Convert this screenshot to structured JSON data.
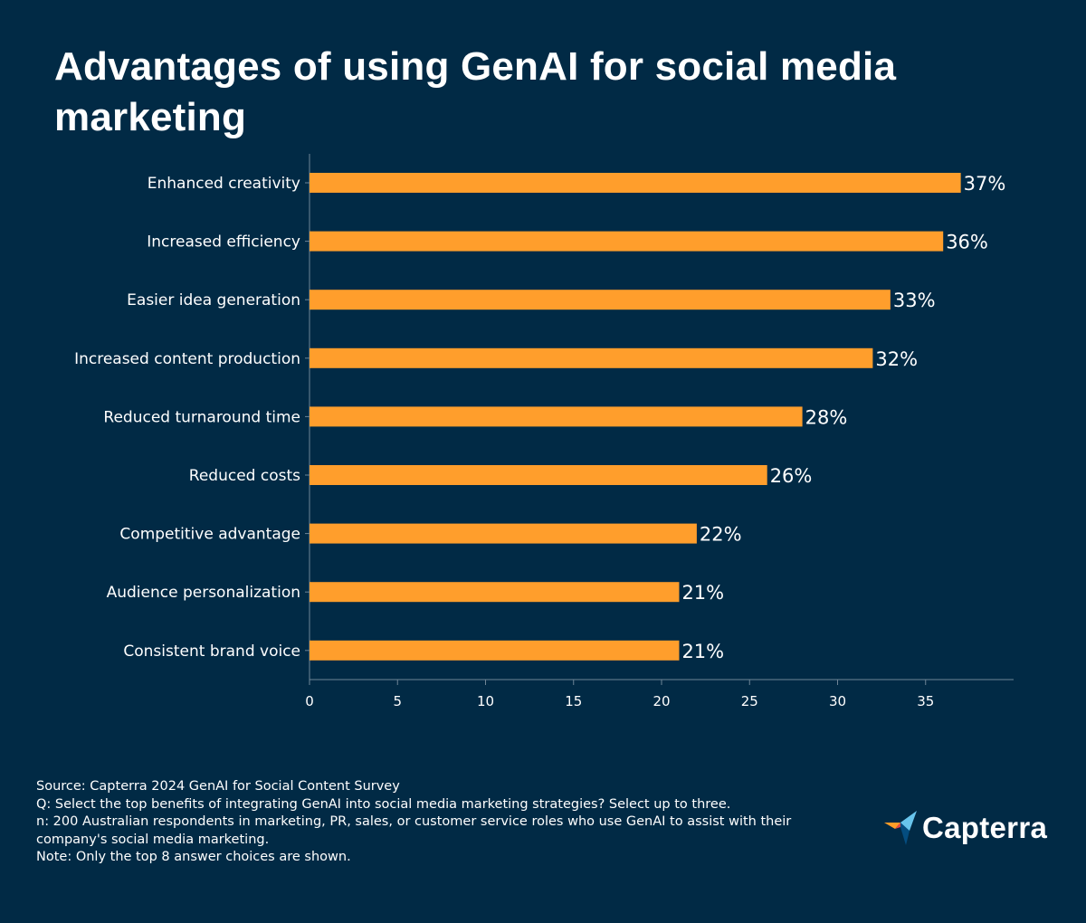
{
  "title": "Advantages of using GenAI for social media marketing",
  "chart_data": {
    "type": "bar",
    "orientation": "horizontal",
    "categories": [
      "Enhanced creativity",
      "Increased efficiency",
      "Easier idea generation",
      "Increased content production",
      "Reduced turnaround time",
      "Reduced costs",
      "Competitive advantage",
      "Audience personalization",
      "Consistent brand voice"
    ],
    "values": [
      37,
      36,
      33,
      32,
      28,
      26,
      22,
      21,
      21
    ],
    "value_labels": [
      "37%",
      "36%",
      "33%",
      "32%",
      "28%",
      "26%",
      "22%",
      "21%",
      "21%"
    ],
    "title": "Advantages of using GenAI for social media marketing",
    "xlabel": "",
    "ylabel": "",
    "xlim": [
      0,
      40
    ],
    "xticks": [
      0,
      5,
      10,
      15,
      20,
      25,
      30,
      35
    ],
    "grid": false,
    "bar_color": "#ff9e2c"
  },
  "notes": {
    "source": "Source: Capterra 2024 GenAI for Social Content Survey",
    "question": "Q: Select the top benefits of integrating GenAI into social media marketing strategies? Select up to three.",
    "sample": "n: 200 Australian respondents in marketing, PR, sales, or customer service roles who use GenAI to assist with their company's social media marketing.",
    "note": "Note: Only the top 8 answer choices are shown."
  },
  "logo": {
    "text": "Capterra",
    "icon": "capterra-arrow-icon",
    "icon_colors": [
      "#ff9d28",
      "#68c5ed",
      "#044d80",
      "#e54747"
    ]
  },
  "colors": {
    "background": "#012a45",
    "bar": "#ff9e2c",
    "text": "#ffffff",
    "axis": "#6f8596"
  }
}
